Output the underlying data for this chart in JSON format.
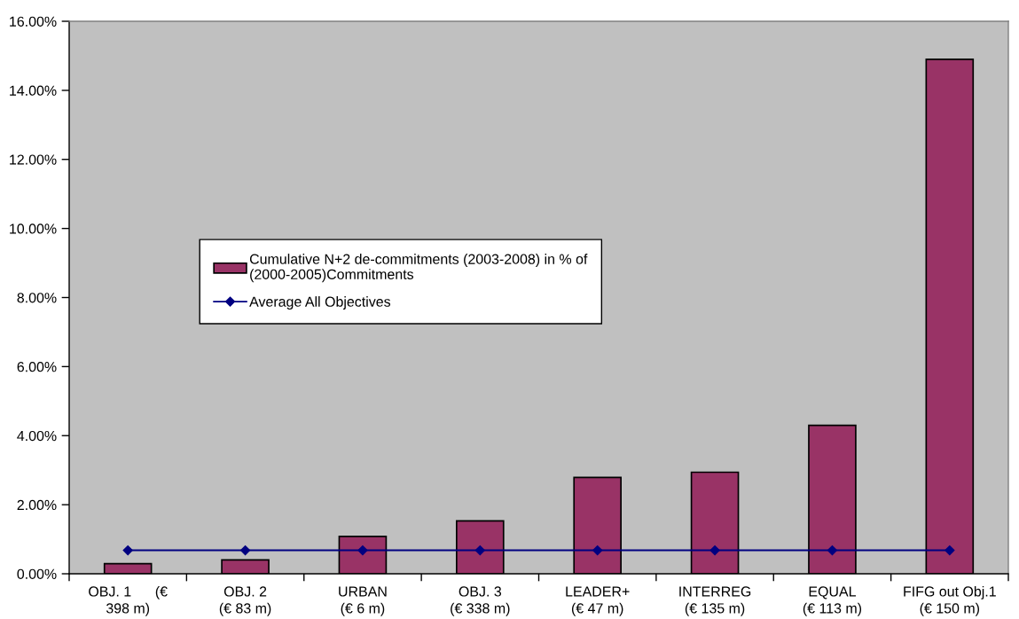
{
  "chart_data": {
    "type": "bar",
    "categories": [
      "OBJ. 1      (€\n398 m)",
      "OBJ. 2\n(€ 83 m)",
      "URBAN\n(€ 6 m)",
      "OBJ. 3\n(€ 338 m)",
      "LEADER+\n(€ 47 m)",
      "INTERREG\n(€ 135 m)",
      "EQUAL\n(€ 113 m)",
      "FIFG out Obj.1\n(€ 150 m)"
    ],
    "series": [
      {
        "name": "Cumulative N+2 de-commitments (2003-2008) in % of\n(2000-2005)Commitments",
        "color": "#993366",
        "values": [
          0.29,
          0.4,
          1.08,
          1.53,
          2.79,
          2.94,
          4.3,
          14.9
        ]
      },
      {
        "name": "Average All Objectives",
        "type": "line",
        "color": "#000080",
        "marker": "diamond",
        "values": [
          0.68,
          0.68,
          0.68,
          0.68,
          0.68,
          0.68,
          0.68,
          0.68
        ]
      }
    ],
    "ylim": [
      0,
      16
    ],
    "yticks": [
      {
        "value": 0,
        "label": "0.00%"
      },
      {
        "value": 2,
        "label": "2.00%"
      },
      {
        "value": 4,
        "label": "4.00%"
      },
      {
        "value": 6,
        "label": "6.00%"
      },
      {
        "value": 8,
        "label": "8.00%"
      },
      {
        "value": 10,
        "label": "10.00%"
      },
      {
        "value": 12,
        "label": "12.00%"
      },
      {
        "value": 14,
        "label": "14.00%"
      },
      {
        "value": 16,
        "label": "16.00%"
      }
    ],
    "legend": "center left"
  }
}
